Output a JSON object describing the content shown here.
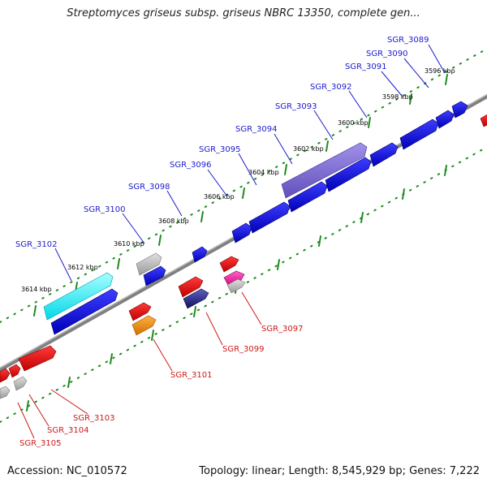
{
  "title": "Streptomyces griseus subsp. griseus NBRC 13350, complete gen...",
  "footer": {
    "accession": "Accession: NC_010572",
    "summary": "Topology: linear; Length: 8,545,929 bp; Genes: 7,222"
  },
  "colors": {
    "forward_label": "#1a1acc",
    "reverse_label": "#cc1a1a",
    "backbone": "#808080",
    "ticks": "#1f8a1f"
  },
  "kbp_ticks": [
    "3596 kbp",
    "3598 kbp",
    "3600 kbp",
    "3602 kbp",
    "3604 kbp",
    "3606 kbp",
    "3608 kbp",
    "3610 kbp",
    "3612 kbp",
    "3614 kbp"
  ],
  "forward_genes": [
    "SGR_3089",
    "SGR_3090",
    "SGR_3091",
    "SGR_3092",
    "SGR_3093",
    "SGR_3094",
    "SGR_3095",
    "SGR_3096",
    "SGR_3098",
    "SGR_3100",
    "SGR_3102"
  ],
  "reverse_genes": [
    "SGR_3097",
    "SGR_3099",
    "SGR_3101",
    "SGR_3103",
    "SGR_3104",
    "SGR_3105"
  ]
}
